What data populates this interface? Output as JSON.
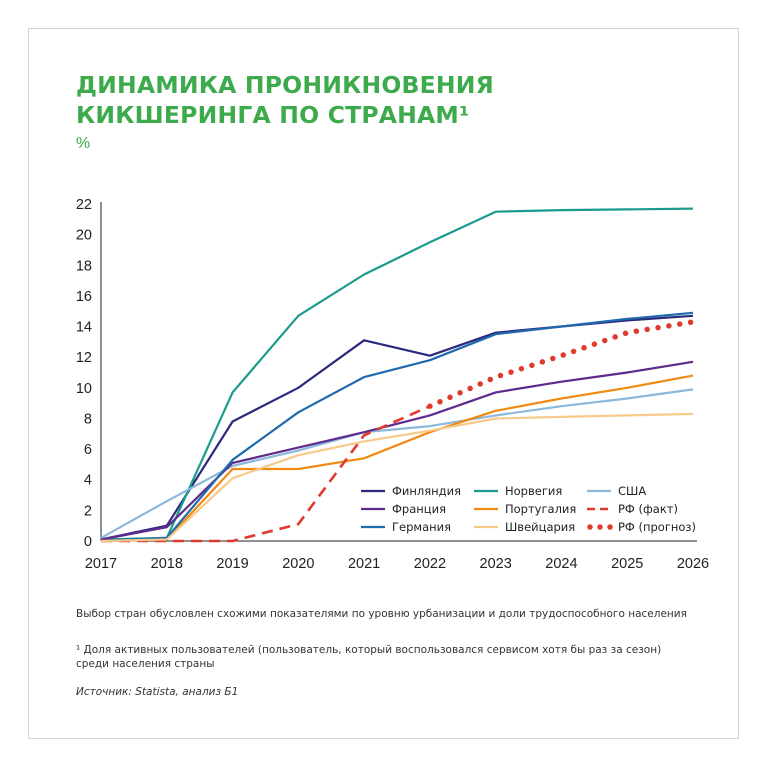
{
  "title_lines": [
    "ДИНАМИКА ПРОНИКНОВЕНИЯ",
    "КИКШЕРИНГА ПО СТРАНАМ¹"
  ],
  "unit": "%",
  "notes": {
    "selection": "Выбор стран обусловлен схожими показателями по уровню урбанизации и доли трудоспособного населения",
    "footnote_line1": "¹ Доля активных пользователей (пользователь, который воспользовался сервисом хотя бы раз за сезон)",
    "footnote_line2": "среди населения страны",
    "source": "Источник: Statista, анализ Б1"
  },
  "chart_data": {
    "type": "line",
    "x": [
      "2017",
      "2018",
      "2019",
      "2020",
      "2021",
      "2022",
      "2023",
      "2024",
      "2025",
      "2026"
    ],
    "ylim": [
      0,
      22
    ],
    "yticks": [
      "0",
      "2",
      "4",
      "6",
      "8",
      "10",
      "12",
      "14",
      "16",
      "18",
      "20",
      "22"
    ],
    "grid": false,
    "legend_position": "bottom-right",
    "series": [
      {
        "name": "Финляндия",
        "color": "#2b2a7e",
        "style": "solid",
        "values": [
          0.1,
          1.0,
          7.8,
          10.0,
          13.1,
          12.1,
          13.6,
          14.0,
          14.4,
          14.7
        ]
      },
      {
        "name": "Норвегия",
        "color": "#1a9b8c",
        "style": "solid",
        "values": [
          0.1,
          0.2,
          9.7,
          14.7,
          17.4,
          19.5,
          21.5,
          21.6,
          21.65,
          21.7
        ]
      },
      {
        "name": "США",
        "color": "#8cb8da",
        "style": "solid",
        "values": [
          0.2,
          2.6,
          4.9,
          5.9,
          7.1,
          7.5,
          8.2,
          8.8,
          9.3,
          9.9
        ]
      },
      {
        "name": "Франция",
        "color": "#5e2a8c",
        "style": "solid",
        "values": [
          0.1,
          0.9,
          5.1,
          6.1,
          7.1,
          8.2,
          9.7,
          10.4,
          11.0,
          11.7
        ]
      },
      {
        "name": "Португалия",
        "color": "#f08a13",
        "style": "solid",
        "values": [
          0.0,
          0.1,
          4.7,
          4.7,
          5.4,
          7.1,
          8.5,
          9.3,
          10.0,
          10.8
        ]
      },
      {
        "name": "РФ (факт)",
        "color": "#e03a2e",
        "style": "dashed",
        "values": [
          0.0,
          0.0,
          0.0,
          1.1,
          6.9,
          8.8,
          null,
          null,
          null,
          null
        ]
      },
      {
        "name": "Германия",
        "color": "#1f6aad",
        "style": "solid",
        "values": [
          0.0,
          0.2,
          5.3,
          8.4,
          10.7,
          11.8,
          13.5,
          14.0,
          14.5,
          14.9
        ]
      },
      {
        "name": "Швейцария",
        "color": "#f7c98a",
        "style": "solid",
        "values": [
          0.0,
          0.1,
          4.1,
          5.6,
          6.5,
          7.2,
          8.0,
          8.1,
          8.2,
          8.3
        ]
      },
      {
        "name": "РФ (прогноз)",
        "color": "#e03a2e",
        "style": "dotted",
        "values": [
          null,
          null,
          null,
          null,
          null,
          8.8,
          10.7,
          12.1,
          13.6,
          14.3
        ]
      }
    ]
  }
}
